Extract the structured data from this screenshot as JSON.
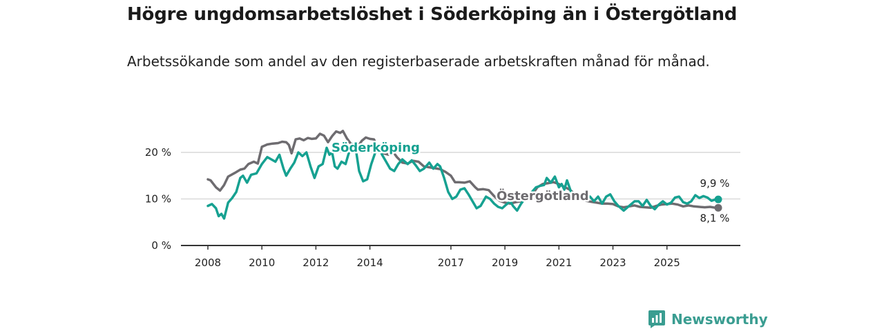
{
  "chart_data": {
    "type": "line",
    "title": "Högre ungdomsarbetslöshet i Söderköping än i Östergötland",
    "subtitle": "Arbetssökande som andel av den registerbaserade arbetskraften månad för månad.",
    "xlabel": "",
    "ylabel": "",
    "xlim": [
      2008,
      2026.9
    ],
    "ylim": [
      0,
      20
    ],
    "x_ticks": [
      2008,
      2010,
      2012,
      2014,
      2017,
      2019,
      2021,
      2023,
      2025
    ],
    "x_tick_labels": [
      "2008",
      "2010",
      "2012",
      "2014",
      "2017",
      "2019",
      "2021",
      "2023",
      "2025"
    ],
    "y_ticks": [
      0,
      10,
      20
    ],
    "y_tick_labels": [
      "0 %",
      "10 %",
      "20 %"
    ],
    "grid": true,
    "legend": "direct labels",
    "series": [
      {
        "name": "Östergötland",
        "color": "#6e6c70",
        "end_label": "8,1 %",
        "points": [
          [
            2008.0,
            14.2
          ],
          [
            2008.1,
            14.0
          ],
          [
            2008.3,
            12.5
          ],
          [
            2008.45,
            11.8
          ],
          [
            2008.6,
            13.0
          ],
          [
            2008.75,
            14.8
          ],
          [
            2009.0,
            15.6
          ],
          [
            2009.2,
            16.3
          ],
          [
            2009.35,
            16.5
          ],
          [
            2009.5,
            17.5
          ],
          [
            2009.7,
            18.0
          ],
          [
            2009.85,
            17.6
          ],
          [
            2010.0,
            21.2
          ],
          [
            2010.2,
            21.7
          ],
          [
            2010.4,
            21.9
          ],
          [
            2010.6,
            22.0
          ],
          [
            2010.75,
            22.3
          ],
          [
            2010.9,
            22.2
          ],
          [
            2011.0,
            21.6
          ],
          [
            2011.1,
            19.8
          ],
          [
            2011.25,
            22.8
          ],
          [
            2011.4,
            23.0
          ],
          [
            2011.55,
            22.6
          ],
          [
            2011.7,
            23.1
          ],
          [
            2011.85,
            22.9
          ],
          [
            2012.0,
            23.0
          ],
          [
            2012.15,
            24.0
          ],
          [
            2012.3,
            23.6
          ],
          [
            2012.45,
            22.2
          ],
          [
            2012.6,
            23.5
          ],
          [
            2012.75,
            24.5
          ],
          [
            2012.9,
            24.2
          ],
          [
            2013.0,
            24.6
          ],
          [
            2013.15,
            23.0
          ],
          [
            2013.3,
            21.8
          ],
          [
            2013.5,
            20.8
          ],
          [
            2013.7,
            22.5
          ],
          [
            2013.85,
            23.2
          ],
          [
            2014.0,
            22.9
          ],
          [
            2014.15,
            22.8
          ],
          [
            2014.3,
            21.0
          ],
          [
            2014.5,
            19.8
          ],
          [
            2014.7,
            19.5
          ],
          [
            2014.85,
            20.2
          ],
          [
            2015.0,
            19.0
          ],
          [
            2015.2,
            17.8
          ],
          [
            2015.4,
            17.6
          ],
          [
            2015.6,
            18.2
          ],
          [
            2015.8,
            18.0
          ],
          [
            2016.0,
            17.0
          ],
          [
            2016.2,
            16.8
          ],
          [
            2016.4,
            16.6
          ],
          [
            2016.6,
            16.4
          ],
          [
            2016.8,
            15.8
          ],
          [
            2017.0,
            15.0
          ],
          [
            2017.15,
            13.6
          ],
          [
            2017.3,
            13.6
          ],
          [
            2017.5,
            13.5
          ],
          [
            2017.7,
            13.8
          ],
          [
            2017.9,
            12.5
          ],
          [
            2018.0,
            12.0
          ],
          [
            2018.2,
            12.1
          ],
          [
            2018.4,
            11.9
          ],
          [
            2018.6,
            10.6
          ],
          [
            2018.8,
            9.6
          ],
          [
            2019.0,
            9.2
          ],
          [
            2019.2,
            9.0
          ],
          [
            2019.4,
            9.3
          ],
          [
            2019.6,
            9.5
          ],
          [
            2019.8,
            10.0
          ],
          [
            2020.0,
            10.8
          ],
          [
            2020.2,
            12.5
          ],
          [
            2020.4,
            13.2
          ],
          [
            2020.6,
            13.4
          ],
          [
            2020.8,
            13.6
          ],
          [
            2021.0,
            13.2
          ],
          [
            2021.2,
            12.6
          ],
          [
            2021.4,
            12.0
          ],
          [
            2021.6,
            11.0
          ],
          [
            2021.8,
            10.2
          ],
          [
            2022.0,
            9.6
          ],
          [
            2022.2,
            9.4
          ],
          [
            2022.4,
            9.2
          ],
          [
            2022.6,
            9.0
          ],
          [
            2022.8,
            9.0
          ],
          [
            2023.0,
            8.9
          ],
          [
            2023.2,
            8.4
          ],
          [
            2023.4,
            8.2
          ],
          [
            2023.6,
            8.4
          ],
          [
            2023.8,
            8.6
          ],
          [
            2024.0,
            8.3
          ],
          [
            2024.2,
            8.2
          ],
          [
            2024.4,
            8.1
          ],
          [
            2024.6,
            8.5
          ],
          [
            2024.8,
            8.8
          ],
          [
            2025.0,
            8.9
          ],
          [
            2025.2,
            9.0
          ],
          [
            2025.4,
            8.8
          ],
          [
            2025.6,
            8.4
          ],
          [
            2025.8,
            8.6
          ],
          [
            2026.0,
            8.4
          ],
          [
            2026.2,
            8.3
          ],
          [
            2026.4,
            8.2
          ],
          [
            2026.6,
            8.3
          ],
          [
            2026.8,
            8.1
          ],
          [
            2026.9,
            8.1
          ]
        ]
      },
      {
        "name": "Söderköping",
        "color": "#16a191",
        "end_label": "9,9 %",
        "points": [
          [
            2008.0,
            8.5
          ],
          [
            2008.15,
            8.9
          ],
          [
            2008.3,
            8.0
          ],
          [
            2008.4,
            6.3
          ],
          [
            2008.5,
            6.8
          ],
          [
            2008.6,
            5.8
          ],
          [
            2008.75,
            9.2
          ],
          [
            2008.9,
            10.2
          ],
          [
            2009.05,
            11.5
          ],
          [
            2009.2,
            14.5
          ],
          [
            2009.3,
            15.0
          ],
          [
            2009.45,
            13.5
          ],
          [
            2009.6,
            15.2
          ],
          [
            2009.8,
            15.5
          ],
          [
            2010.0,
            17.5
          ],
          [
            2010.2,
            19.0
          ],
          [
            2010.35,
            18.5
          ],
          [
            2010.5,
            18.0
          ],
          [
            2010.65,
            19.5
          ],
          [
            2010.8,
            16.5
          ],
          [
            2010.9,
            15.0
          ],
          [
            2011.05,
            16.5
          ],
          [
            2011.2,
            17.8
          ],
          [
            2011.35,
            20.0
          ],
          [
            2011.5,
            19.2
          ],
          [
            2011.65,
            20.0
          ],
          [
            2011.8,
            17.0
          ],
          [
            2011.95,
            14.5
          ],
          [
            2012.1,
            17.0
          ],
          [
            2012.25,
            17.5
          ],
          [
            2012.4,
            21.0
          ],
          [
            2012.5,
            19.5
          ],
          [
            2012.6,
            20.0
          ],
          [
            2012.7,
            17.0
          ],
          [
            2012.8,
            16.5
          ],
          [
            2012.95,
            18.0
          ],
          [
            2013.1,
            17.5
          ],
          [
            2013.2,
            19.5
          ],
          [
            2013.35,
            21.8
          ],
          [
            2013.5,
            19.8
          ],
          [
            2013.6,
            16.0
          ],
          [
            2013.75,
            13.8
          ],
          [
            2013.9,
            14.2
          ],
          [
            2014.05,
            17.5
          ],
          [
            2014.2,
            20.0
          ],
          [
            2014.3,
            21.5
          ],
          [
            2014.45,
            19.5
          ],
          [
            2014.6,
            18.0
          ],
          [
            2014.75,
            16.5
          ],
          [
            2014.9,
            16.0
          ],
          [
            2015.05,
            17.5
          ],
          [
            2015.2,
            18.5
          ],
          [
            2015.4,
            17.5
          ],
          [
            2015.55,
            18.3
          ],
          [
            2015.7,
            17.2
          ],
          [
            2015.85,
            16.0
          ],
          [
            2016.0,
            16.5
          ],
          [
            2016.2,
            17.8
          ],
          [
            2016.35,
            16.5
          ],
          [
            2016.5,
            17.5
          ],
          [
            2016.6,
            17.0
          ],
          [
            2016.75,
            14.5
          ],
          [
            2016.9,
            11.5
          ],
          [
            2017.05,
            10.0
          ],
          [
            2017.2,
            10.5
          ],
          [
            2017.35,
            12.0
          ],
          [
            2017.5,
            12.3
          ],
          [
            2017.65,
            11.0
          ],
          [
            2017.8,
            9.5
          ],
          [
            2017.95,
            8.0
          ],
          [
            2018.1,
            8.5
          ],
          [
            2018.3,
            10.5
          ],
          [
            2018.45,
            10.0
          ],
          [
            2018.6,
            9.0
          ],
          [
            2018.75,
            8.3
          ],
          [
            2018.9,
            8.0
          ],
          [
            2019.05,
            8.8
          ],
          [
            2019.2,
            9.5
          ],
          [
            2019.3,
            8.5
          ],
          [
            2019.45,
            7.5
          ],
          [
            2019.6,
            9.0
          ],
          [
            2019.8,
            10.5
          ],
          [
            2020.0,
            11.5
          ],
          [
            2020.15,
            12.5
          ],
          [
            2020.3,
            12.8
          ],
          [
            2020.45,
            13.0
          ],
          [
            2020.55,
            14.5
          ],
          [
            2020.7,
            13.5
          ],
          [
            2020.85,
            14.8
          ],
          [
            2021.0,
            12.5
          ],
          [
            2021.1,
            13.2
          ],
          [
            2021.2,
            12.0
          ],
          [
            2021.3,
            14.0
          ],
          [
            2021.45,
            11.5
          ],
          [
            2021.6,
            10.0
          ],
          [
            2021.75,
            10.3
          ],
          [
            2022.0,
            10.0
          ],
          [
            2022.15,
            10.5
          ],
          [
            2022.3,
            9.5
          ],
          [
            2022.45,
            10.5
          ],
          [
            2022.6,
            9.0
          ],
          [
            2022.75,
            10.5
          ],
          [
            2022.9,
            11.0
          ],
          [
            2023.05,
            9.5
          ],
          [
            2023.2,
            8.5
          ],
          [
            2023.4,
            7.5
          ],
          [
            2023.6,
            8.5
          ],
          [
            2023.8,
            9.5
          ],
          [
            2023.95,
            9.5
          ],
          [
            2024.1,
            8.5
          ],
          [
            2024.25,
            9.8
          ],
          [
            2024.4,
            8.5
          ],
          [
            2024.55,
            7.8
          ],
          [
            2024.7,
            8.8
          ],
          [
            2024.85,
            9.5
          ],
          [
            2025.0,
            8.8
          ],
          [
            2025.15,
            9.2
          ],
          [
            2025.3,
            10.3
          ],
          [
            2025.45,
            10.5
          ],
          [
            2025.6,
            9.3
          ],
          [
            2025.75,
            9.0
          ],
          [
            2025.9,
            9.5
          ],
          [
            2026.05,
            10.8
          ],
          [
            2026.2,
            10.2
          ],
          [
            2026.35,
            10.6
          ],
          [
            2026.5,
            10.3
          ],
          [
            2026.65,
            9.6
          ],
          [
            2026.8,
            9.9
          ],
          [
            2026.9,
            9.9
          ]
        ]
      }
    ]
  },
  "brand": {
    "name": "Newsworthy",
    "color": "#3a9d91"
  },
  "colors": {
    "grid": "#d9d9d9",
    "axis": "#333333"
  }
}
